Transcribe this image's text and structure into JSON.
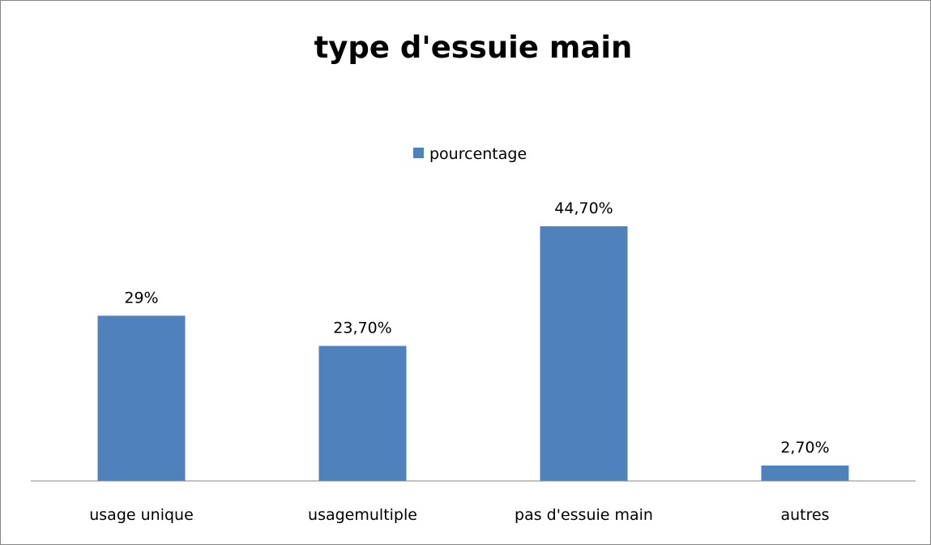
{
  "chart_data": {
    "type": "bar",
    "title": "type d'essuie main",
    "categories": [
      "usage unique",
      "usagemultiple",
      "pas d'essuie main",
      "autres"
    ],
    "series": [
      {
        "name": "pourcentage",
        "values": [
          29,
          23.7,
          44.7,
          2.7
        ],
        "labels": [
          "29%",
          "23,70%",
          "44,70%",
          "2,70%"
        ],
        "color": "#4F81BD"
      }
    ],
    "ylim": [
      0,
      50
    ],
    "grid": false,
    "legend_position": "top"
  }
}
